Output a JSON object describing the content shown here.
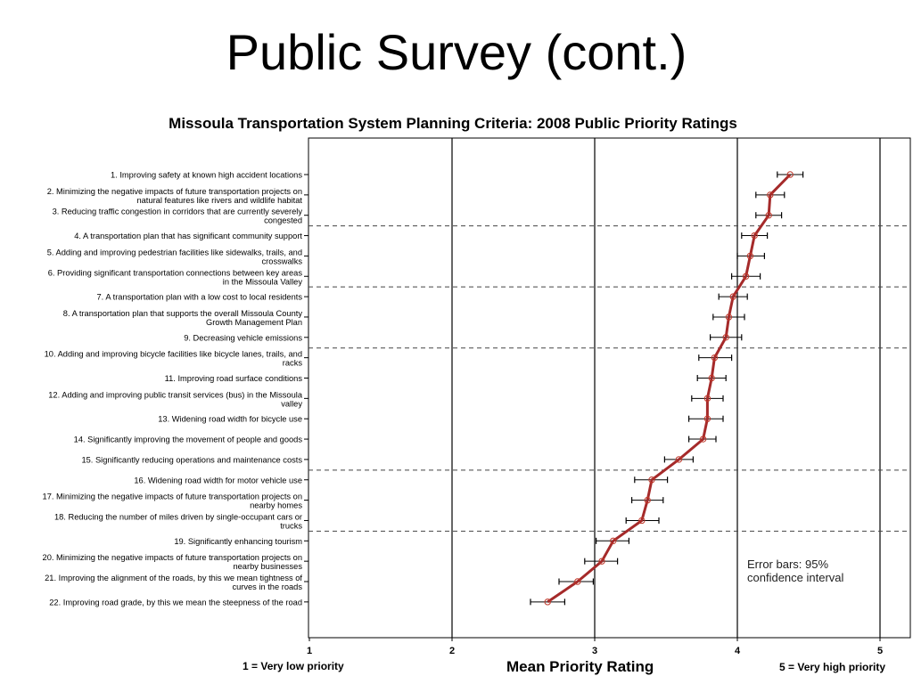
{
  "slide": {
    "title": "Public Survey (cont.)"
  },
  "x_axis_footer": {
    "title": "Mean Priority Rating",
    "low_label": "1 = Very low priority",
    "high_label": "5 = Very high priority"
  },
  "annotation": {
    "line1": "Error bars: 95%",
    "line2": "confidence interval"
  },
  "colors": {
    "line": "#a52a2a",
    "marker": "#c0392b",
    "gridline": "#000000",
    "dashed": "#444444"
  },
  "chart_data": {
    "type": "line",
    "orientation": "horizontal",
    "title": "Missoula Transportation System Planning Criteria: 2008 Public Priority Ratings",
    "xlabel": "Mean Priority Rating",
    "xlim": [
      1,
      5
    ],
    "xticks": [
      "1",
      "2",
      "3",
      "4",
      "5"
    ],
    "grid": "vertical lines at 2, 3, 4, 5",
    "dashed_separators_after_item": [
      3,
      6,
      9,
      15,
      18
    ],
    "categories": [
      [
        "1. Improving safety at known high accident locations"
      ],
      [
        "2. Minimizing the negative impacts of future transportation projects on",
        "natural features like rivers and wildlife habitat"
      ],
      [
        "3. Reducing traffic congestion in corridors that are currently severely",
        "congested"
      ],
      [
        "4. A transportation plan that has significant community support"
      ],
      [
        "5. Adding and improving pedestrian facilities like sidewalks, trails, and",
        "crosswalks"
      ],
      [
        "6. Providing significant transportation connections between key areas",
        "in the Missoula Valley"
      ],
      [
        "7. A transportation plan with a low cost to local residents"
      ],
      [
        "8. A transportation plan that supports the overall Missoula County",
        "Growth Management Plan"
      ],
      [
        "9. Decreasing vehicle emissions"
      ],
      [
        "10. Adding and improving bicycle facilities like bicycle lanes, trails, and",
        "racks"
      ],
      [
        "11. Improving road surface conditions"
      ],
      [
        "12. Adding and improving public transit services (bus) in the Missoula",
        "valley"
      ],
      [
        "13. Widening road width for bicycle use"
      ],
      [
        "14. Significantly improving the movement of people and goods"
      ],
      [
        "15. Significantly reducing operations and maintenance costs"
      ],
      [
        "16. Widening road width for motor vehicle use"
      ],
      [
        "17. Minimizing the negative impacts of future transportation projects on",
        "nearby homes"
      ],
      [
        "18. Reducing the number of miles driven by single-occupant cars or",
        "trucks"
      ],
      [
        "19. Significantly enhancing tourism"
      ],
      [
        "20. Minimizing the negative impacts of future transportation projects on",
        "nearby businesses"
      ],
      [
        "21. Improving the alignment of the roads, by this we mean tightness of",
        "curves in the roads"
      ],
      [
        "22. Improving road grade, by this we mean the steepness of the road"
      ]
    ],
    "series": [
      {
        "values": [
          4.37,
          4.23,
          4.22,
          4.12,
          4.09,
          4.06,
          3.97,
          3.94,
          3.92,
          3.84,
          3.82,
          3.79,
          3.79,
          3.76,
          3.59,
          3.4,
          3.37,
          3.33,
          3.13,
          3.05,
          2.88,
          2.67
        ],
        "ci_low": [
          4.28,
          4.13,
          4.13,
          4.03,
          4.0,
          3.96,
          3.87,
          3.83,
          3.81,
          3.73,
          3.72,
          3.68,
          3.66,
          3.66,
          3.49,
          3.28,
          3.26,
          3.22,
          3.01,
          2.93,
          2.75,
          2.55
        ],
        "ci_high": [
          4.46,
          4.33,
          4.31,
          4.21,
          4.19,
          4.16,
          4.07,
          4.05,
          4.03,
          3.96,
          3.92,
          3.9,
          3.9,
          3.85,
          3.69,
          3.51,
          3.48,
          3.45,
          3.24,
          3.16,
          2.99,
          2.79
        ]
      }
    ],
    "error_bars": "95% confidence interval"
  }
}
